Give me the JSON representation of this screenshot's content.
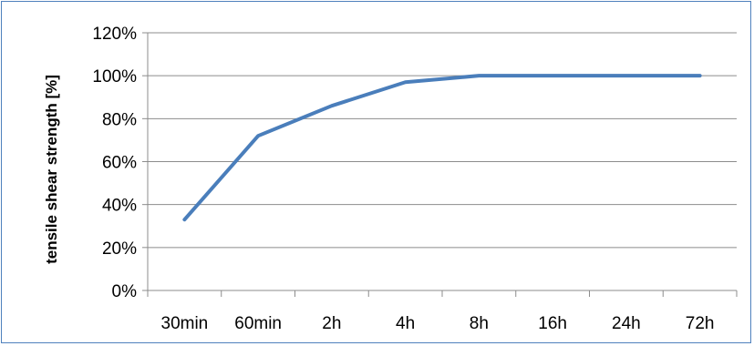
{
  "chart_data": {
    "type": "line",
    "title": "",
    "xlabel": "",
    "ylabel": "tensile shear strength [%]",
    "categories": [
      "30min",
      "60min",
      "2h",
      "4h",
      "8h",
      "16h",
      "24h",
      "72h"
    ],
    "series": [
      {
        "values": [
          33,
          72,
          86,
          97,
          100,
          100,
          100,
          100
        ],
        "color": "#4a7ebb"
      }
    ],
    "y_ticks": [
      "0%",
      "20%",
      "40%",
      "60%",
      "80%",
      "100%",
      "120%"
    ],
    "ylim": [
      0,
      120
    ],
    "grid": true,
    "legend": "none"
  }
}
